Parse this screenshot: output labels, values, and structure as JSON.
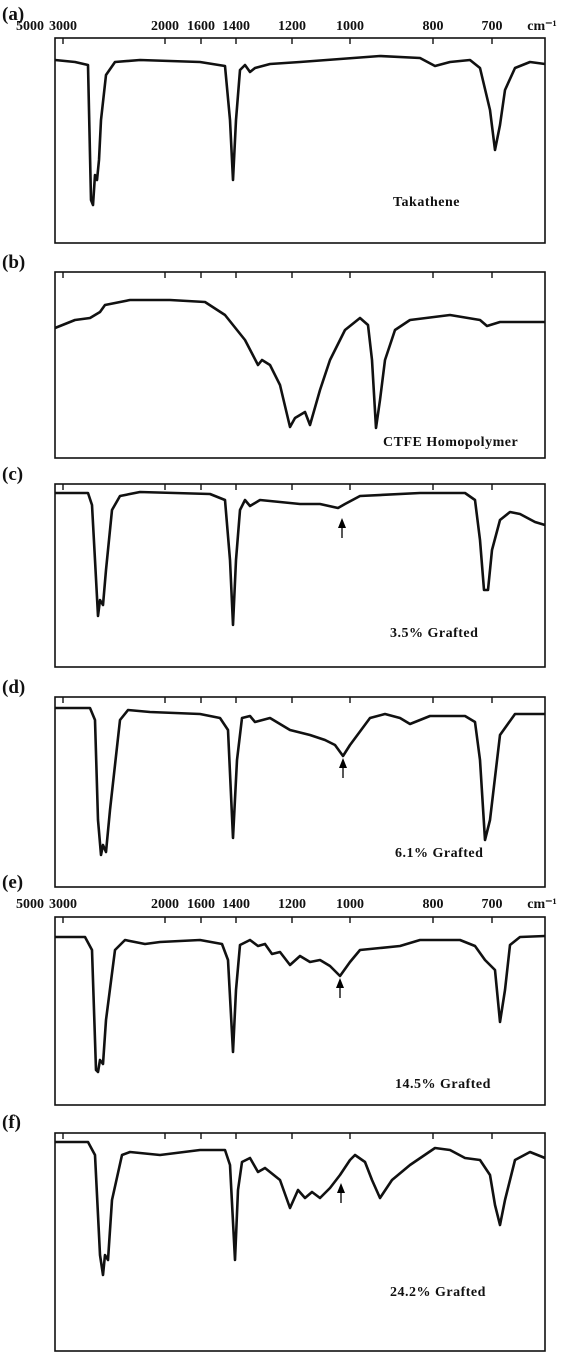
{
  "axis": {
    "ticks": [
      "5000",
      "3000",
      "2000",
      "1600",
      "1400",
      "1200",
      "1000",
      "800",
      "700"
    ],
    "unit": "cm⁻¹"
  },
  "panels": [
    {
      "label": "(a)",
      "annotation": "Takathene"
    },
    {
      "label": "(b)",
      "annotation": "CTFE Homopolymer"
    },
    {
      "label": "(c)",
      "annotation": "3.5% Grafted"
    },
    {
      "label": "(d)",
      "annotation": "6.1% Grafted"
    },
    {
      "label": "(e)",
      "annotation": "14.5% Grafted"
    },
    {
      "label": "(f)",
      "annotation": "24.2% Grafted"
    }
  ]
}
